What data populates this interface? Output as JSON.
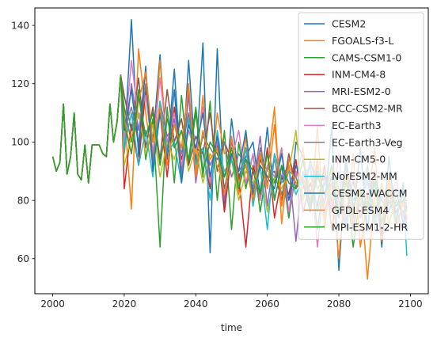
{
  "chart_data": {
    "type": "line",
    "title": "",
    "xlabel": "time",
    "ylabel": "",
    "xlim": [
      1995,
      2105
    ],
    "ylim": [
      48,
      146
    ],
    "xticks": [
      2000,
      2020,
      2040,
      2060,
      2080,
      2100
    ],
    "yticks": [
      60,
      80,
      100,
      120,
      140
    ],
    "grid": false,
    "legend_position": "top-right",
    "historical": {
      "x": [
        2000,
        2001,
        2002,
        2003,
        2004,
        2005,
        2006,
        2007,
        2008,
        2009,
        2010,
        2011,
        2012,
        2013,
        2014,
        2015,
        2016,
        2017,
        2018,
        2019
      ],
      "values": [
        95,
        90,
        93,
        113,
        89,
        95,
        110,
        89,
        87,
        99,
        86,
        99,
        99,
        99,
        96,
        95,
        113,
        100,
        107,
        123
      ]
    },
    "series": [
      {
        "name": "CESM2",
        "color": "#1f77b4",
        "x": [
          2020,
          2022,
          2024,
          2026,
          2028,
          2030,
          2032,
          2034,
          2036,
          2038,
          2040,
          2042,
          2044,
          2046,
          2048,
          2050,
          2052,
          2054,
          2056,
          2058,
          2060,
          2062,
          2064,
          2066,
          2068,
          2070,
          2072,
          2074,
          2076,
          2078,
          2080,
          2082,
          2084,
          2086,
          2088,
          2090,
          2092,
          2094,
          2096,
          2098,
          2099
        ],
        "values": [
          98,
          142,
          95,
          118,
          100,
          130,
          95,
          125,
          88,
          128,
          92,
          134,
          62,
          132,
          78,
          108,
          88,
          95,
          100,
          82,
          105,
          80,
          92,
          74,
          100,
          95,
          82,
          90,
          78,
          105,
          56,
          92,
          74,
          98,
          70,
          90,
          64,
          95,
          72,
          86,
          70
        ]
      },
      {
        "name": "FGOALS-f3-L",
        "color": "#ff7f0e",
        "x": [
          2020,
          2022,
          2024,
          2026,
          2028,
          2030,
          2032,
          2034,
          2036,
          2038,
          2040,
          2042,
          2044,
          2046,
          2048,
          2050,
          2052,
          2054,
          2056,
          2058,
          2060,
          2062,
          2064,
          2066,
          2068,
          2070,
          2072,
          2074,
          2076,
          2078,
          2080,
          2082,
          2084,
          2086,
          2088,
          2090,
          2092,
          2094,
          2096,
          2098,
          2099
        ],
        "values": [
          110,
          77,
          132,
          110,
          92,
          128,
          98,
          112,
          86,
          118,
          90,
          116,
          84,
          110,
          96,
          98,
          82,
          102,
          78,
          95,
          90,
          112,
          72,
          94,
          88,
          98,
          76,
          105,
          70,
          92,
          84,
          72,
          96,
          64,
          80,
          98,
          66,
          88,
          76,
          82,
          80
        ]
      },
      {
        "name": "CAMS-CSM1-0",
        "color": "#2ca02c",
        "x": [
          2020,
          2022,
          2024,
          2026,
          2028,
          2030,
          2032,
          2034,
          2036,
          2038,
          2040,
          2042,
          2044,
          2046,
          2048,
          2050,
          2052,
          2054,
          2056,
          2058,
          2060,
          2062,
          2064,
          2066,
          2068,
          2070,
          2072,
          2074,
          2076,
          2078,
          2080,
          2082,
          2084,
          2086,
          2088,
          2090,
          2092,
          2094,
          2096,
          2098,
          2099
        ],
        "values": [
          112,
          100,
          118,
          94,
          108,
          64,
          112,
          86,
          116,
          92,
          110,
          88,
          114,
          80,
          104,
          70,
          100,
          84,
          96,
          76,
          92,
          86,
          98,
          74,
          90,
          84,
          92,
          70,
          88,
          80,
          74,
          88,
          64,
          82,
          76,
          86,
          68,
          80,
          74,
          76,
          78
        ]
      },
      {
        "name": "INM-CM4-8",
        "color": "#d62728",
        "x": [
          2020,
          2022,
          2024,
          2026,
          2028,
          2030,
          2032,
          2034,
          2036,
          2038,
          2040,
          2042,
          2044,
          2046,
          2048,
          2050,
          2052,
          2054,
          2056,
          2058,
          2060,
          2062,
          2064,
          2066,
          2068,
          2070,
          2072,
          2074,
          2076,
          2078,
          2080,
          2082,
          2084,
          2086,
          2088,
          2090,
          2092,
          2094,
          2096,
          2098,
          2099
        ],
        "values": [
          84,
          106,
          92,
          118,
          96,
          110,
          88,
          112,
          94,
          104,
          98,
          96,
          84,
          100,
          76,
          96,
          88,
          64,
          92,
          80,
          98,
          74,
          88,
          82,
          94,
          76,
          86,
          78,
          92,
          70,
          84,
          72,
          88,
          74,
          80,
          90,
          68,
          82,
          76,
          80,
          78
        ]
      },
      {
        "name": "MRI-ESM2-0",
        "color": "#9467bd",
        "x": [
          2020,
          2022,
          2024,
          2026,
          2028,
          2030,
          2032,
          2034,
          2036,
          2038,
          2040,
          2042,
          2044,
          2046,
          2048,
          2050,
          2052,
          2054,
          2056,
          2058,
          2060,
          2062,
          2064,
          2066,
          2068,
          2070,
          2072,
          2074,
          2076,
          2078,
          2080,
          2082,
          2084,
          2086,
          2088,
          2090,
          2092,
          2094,
          2096,
          2098,
          2099
        ],
        "values": [
          96,
          120,
          104,
          124,
          92,
          112,
          98,
          108,
          90,
          116,
          86,
          104,
          92,
          98,
          80,
          100,
          90,
          94,
          84,
          102,
          78,
          96,
          88,
          92,
          66,
          90,
          82,
          94,
          76,
          86,
          80,
          70,
          88,
          74,
          82,
          90,
          72,
          84,
          76,
          70,
          74
        ]
      },
      {
        "name": "BCC-CSM2-MR",
        "color": "#8c564b",
        "x": [
          2020,
          2022,
          2024,
          2026,
          2028,
          2030,
          2032,
          2034,
          2036,
          2038,
          2040,
          2042,
          2044,
          2046,
          2048,
          2050,
          2052,
          2054,
          2056,
          2058,
          2060,
          2062,
          2064,
          2066,
          2068,
          2070,
          2072,
          2074,
          2076,
          2078,
          2080,
          2082,
          2084,
          2086,
          2088,
          2090,
          2092,
          2094,
          2096,
          2098,
          2099
        ],
        "values": [
          116,
          104,
          122,
          98,
          112,
          94,
          118,
          100,
          108,
          92,
          102,
          96,
          110,
          90,
          100,
          94,
          86,
          98,
          82,
          94,
          88,
          90,
          80,
          96,
          84,
          88,
          78,
          92,
          82,
          86,
          76,
          90,
          70,
          84,
          80,
          74,
          86,
          72,
          80,
          76,
          74
        ]
      },
      {
        "name": "EC-Earth3",
        "color": "#e377c2",
        "x": [
          2020,
          2022,
          2024,
          2026,
          2028,
          2030,
          2032,
          2034,
          2036,
          2038,
          2040,
          2042,
          2044,
          2046,
          2048,
          2050,
          2052,
          2054,
          2056,
          2058,
          2060,
          2062,
          2064,
          2066,
          2068,
          2070,
          2072,
          2074,
          2076,
          2078,
          2080,
          2082,
          2084,
          2086,
          2088,
          2090,
          2092,
          2094,
          2096,
          2098,
          2099
        ],
        "values": [
          100,
          128,
          108,
          116,
          96,
          122,
          100,
          110,
          92,
          104,
          96,
          112,
          86,
          100,
          90,
          94,
          104,
          86,
          96,
          80,
          92,
          88,
          98,
          76,
          90,
          84,
          92,
          64,
          88,
          78,
          96,
          72,
          84,
          80,
          86,
          70,
          82,
          76,
          88,
          74,
          80
        ]
      },
      {
        "name": "EC-Earth3-Veg",
        "color": "#7f7f7f",
        "x": [
          2020,
          2022,
          2024,
          2026,
          2028,
          2030,
          2032,
          2034,
          2036,
          2038,
          2040,
          2042,
          2044,
          2046,
          2048,
          2050,
          2052,
          2054,
          2056,
          2058,
          2060,
          2062,
          2064,
          2066,
          2068,
          2070,
          2072,
          2074,
          2076,
          2078,
          2080,
          2082,
          2084,
          2086,
          2088,
          2090,
          2092,
          2094,
          2096,
          2098,
          2099
        ],
        "values": [
          104,
          112,
          100,
          120,
          94,
          114,
          102,
          106,
          96,
          110,
          92,
          102,
          98,
          94,
          100,
          88,
          96,
          92,
          84,
          98,
          86,
          94,
          82,
          90,
          88,
          80,
          94,
          84,
          88,
          76,
          90,
          82,
          86,
          78,
          92,
          74,
          84,
          80,
          78,
          82,
          76
        ]
      },
      {
        "name": "INM-CM5-0",
        "color": "#bcbd22",
        "x": [
          2020,
          2022,
          2024,
          2026,
          2028,
          2030,
          2032,
          2034,
          2036,
          2038,
          2040,
          2042,
          2044,
          2046,
          2048,
          2050,
          2052,
          2054,
          2056,
          2058,
          2060,
          2062,
          2064,
          2066,
          2068,
          2070,
          2072,
          2074,
          2076,
          2078,
          2080,
          2082,
          2084,
          2086,
          2088,
          2090,
          2092,
          2094,
          2096,
          2098,
          2099
        ],
        "values": [
          92,
          102,
          110,
          96,
          106,
          88,
          100,
          94,
          104,
          90,
          98,
          86,
          96,
          92,
          84,
          94,
          80,
          90,
          86,
          92,
          76,
          88,
          84,
          90,
          104,
          80,
          88,
          84,
          78,
          90,
          82,
          86,
          76,
          84,
          80,
          78,
          86,
          72,
          82,
          78,
          76
        ]
      },
      {
        "name": "NorESM2-MM",
        "color": "#17becf",
        "x": [
          2020,
          2022,
          2024,
          2026,
          2028,
          2030,
          2032,
          2034,
          2036,
          2038,
          2040,
          2042,
          2044,
          2046,
          2048,
          2050,
          2052,
          2054,
          2056,
          2058,
          2060,
          2062,
          2064,
          2066,
          2068,
          2070,
          2072,
          2074,
          2076,
          2078,
          2080,
          2082,
          2084,
          2086,
          2088,
          2090,
          2092,
          2094,
          2096,
          2098,
          2099
        ],
        "values": [
          98,
          110,
          92,
          104,
          88,
          114,
          96,
          100,
          86,
          108,
          92,
          98,
          80,
          104,
          88,
          94,
          84,
          98,
          78,
          92,
          70,
          96,
          86,
          90,
          82,
          88,
          92,
          76,
          86,
          82,
          90,
          70,
          84,
          78,
          88,
          72,
          82,
          80,
          74,
          84,
          61
        ]
      },
      {
        "name": "CESM2-WACCM",
        "color": "#1f77b4",
        "x": [
          2020,
          2022,
          2024,
          2026,
          2028,
          2030,
          2032,
          2034,
          2036,
          2038,
          2040,
          2042,
          2044,
          2046,
          2048,
          2050,
          2052,
          2054,
          2056,
          2058,
          2060,
          2062,
          2064,
          2066,
          2068,
          2070,
          2072,
          2074,
          2076,
          2078,
          2080,
          2082,
          2084,
          2086,
          2088,
          2090,
          2092,
          2094,
          2096,
          2098,
          2099
        ],
        "values": [
          104,
          118,
          98,
          126,
          90,
          110,
          94,
          118,
          86,
          106,
          98,
          110,
          88,
          102,
          84,
          96,
          90,
          104,
          82,
          92,
          88,
          84,
          96,
          80,
          92,
          86,
          76,
          90,
          82,
          88,
          74,
          94,
          78,
          84,
          70,
          88,
          80,
          76,
          84,
          72,
          78
        ]
      },
      {
        "name": "GFDL-ESM4",
        "color": "#ff7f0e",
        "x": [
          2020,
          2022,
          2024,
          2026,
          2028,
          2030,
          2032,
          2034,
          2036,
          2038,
          2040,
          2042,
          2044,
          2046,
          2048,
          2050,
          2052,
          2054,
          2056,
          2058,
          2060,
          2062,
          2064,
          2066,
          2068,
          2070,
          2072,
          2074,
          2076,
          2078,
          2080,
          2082,
          2084,
          2086,
          2088,
          2090,
          2092,
          2094,
          2096,
          2098,
          2099
        ],
        "values": [
          108,
          96,
          114,
          124,
          100,
          112,
          92,
          106,
          98,
          120,
          88,
          104,
          94,
          98,
          82,
          102,
          86,
          92,
          80,
          96,
          84,
          106,
          78,
          92,
          86,
          88,
          80,
          94,
          74,
          86,
          60,
          90,
          72,
          84,
          53,
          82,
          76,
          86,
          70,
          80,
          74
        ]
      },
      {
        "name": "MPI-ESM1-2-HR",
        "color": "#2ca02c",
        "x": [
          2020,
          2022,
          2024,
          2026,
          2028,
          2030,
          2032,
          2034,
          2036,
          2038,
          2040,
          2042,
          2044,
          2046,
          2048,
          2050,
          2052,
          2054,
          2056,
          2058,
          2060,
          2062,
          2064,
          2066,
          2068,
          2070,
          2072,
          2074,
          2076,
          2078,
          2080,
          2082,
          2084,
          2086,
          2088,
          2090,
          2092,
          2094,
          2096,
          2098,
          2099
        ],
        "values": [
          106,
          96,
          116,
          102,
          110,
          92,
          108,
          98,
          104,
          94,
          112,
          90,
          100,
          96,
          88,
          98,
          84,
          94,
          90,
          82,
          96,
          80,
          92,
          86,
          84,
          94,
          78,
          88,
          82,
          92,
          76,
          86,
          80,
          84,
          78,
          88,
          72,
          84,
          78,
          80,
          80
        ]
      }
    ]
  }
}
